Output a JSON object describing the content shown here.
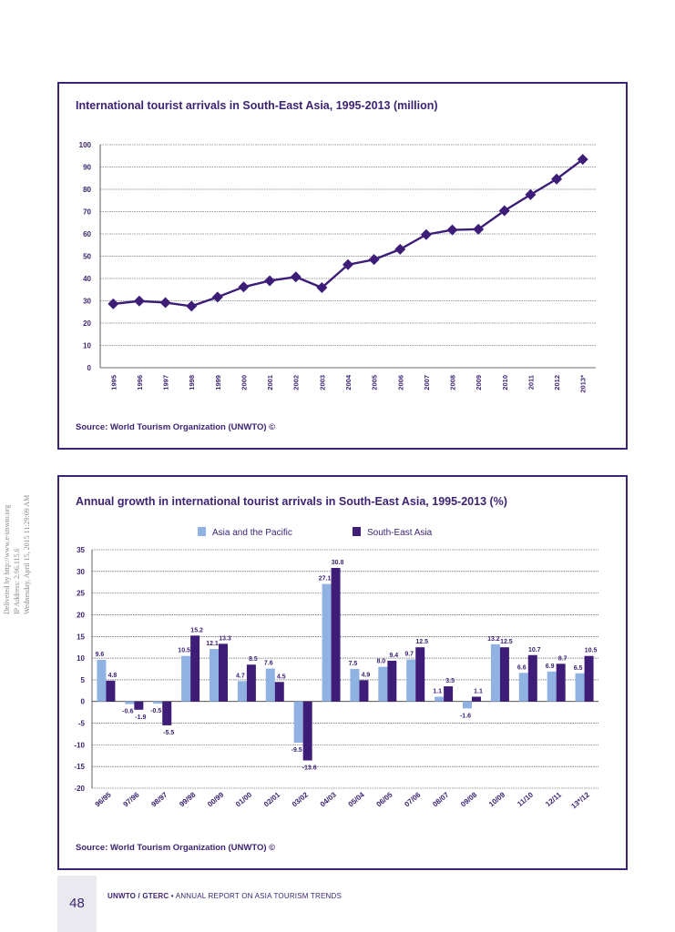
{
  "watermark": {
    "line1": "Delivered by http://www.e-unwto.org",
    "line2": "IP Address: 2.96.115.6",
    "line3": "Wednesday, April 15, 2015 11:29:09 AM"
  },
  "footer": {
    "page_number": "48",
    "org": "UNWTO / GTERC",
    "bullet": "•",
    "report": "ANNUAL REPORT ON ASIA TOURISM TRENDS"
  },
  "colors": {
    "series_dark": "#3d1d78",
    "series_light": "#8fb2e3",
    "frame": "#3d2373"
  },
  "chart_data": [
    {
      "type": "line",
      "title": "International tourist arrivals in South-East Asia, 1995-2013 (million)",
      "source": "Source: World Tourism Organization (UNWTO) ©",
      "x": [
        "1995",
        "1996",
        "1997",
        "1998",
        "1999",
        "2000",
        "2001",
        "2002",
        "2003",
        "2004",
        "2005",
        "2006",
        "2007",
        "2008",
        "2009",
        "2010",
        "2011",
        "2012",
        "2013*"
      ],
      "series": [
        {
          "values": [
            28.6,
            29.9,
            29.2,
            27.6,
            31.7,
            36.2,
            39.0,
            40.7,
            35.9,
            46.2,
            48.5,
            53.1,
            59.7,
            61.8,
            62.1,
            70.4,
            77.6,
            84.6,
            93.4
          ]
        }
      ],
      "ylim": [
        0,
        100
      ],
      "yticks": [
        0,
        10,
        20,
        30,
        40,
        50,
        60,
        70,
        80,
        90,
        100
      ],
      "grid": true
    },
    {
      "type": "bar",
      "title": "Annual growth in international tourist arrivals in South-East Asia, 1995-2013 (%)",
      "source": "Source: World Tourism Organization (UNWTO) ©",
      "categories": [
        "96/95",
        "97/96",
        "98/97",
        "99/98",
        "00/99",
        "01/00",
        "02/01",
        "03/02",
        "04/03",
        "05/04",
        "06/05",
        "07/06",
        "08/07",
        "09/08",
        "10/09",
        "11/10",
        "12/11",
        "13*/12"
      ],
      "series": [
        {
          "name": "Asia and the Pacific",
          "values": [
            9.6,
            -0.6,
            -0.5,
            10.5,
            12.1,
            4.7,
            7.6,
            -9.5,
            27.1,
            7.5,
            8.0,
            9.7,
            1.1,
            -1.6,
            13.2,
            6.6,
            6.9,
            6.5
          ]
        },
        {
          "name": "South-East Asia",
          "values": [
            4.8,
            -1.9,
            -5.5,
            15.2,
            13.3,
            8.5,
            4.5,
            -13.6,
            30.8,
            4.9,
            9.4,
            12.5,
            3.5,
            1.1,
            12.5,
            10.7,
            8.7,
            10.5
          ]
        }
      ],
      "labels": [
        [
          "9.6",
          "-0.6",
          "-0.5",
          "10.5",
          "12.1",
          "4.7",
          "7.6",
          "-9.5",
          "27.1",
          "7.5",
          "8.0",
          "9.7",
          "1.1",
          "-1.6",
          "13.2",
          "6.6",
          "6.9",
          "6.5"
        ],
        [
          "4.8",
          "-1.9",
          "-5.5",
          "15.2",
          "13.3",
          "8.5",
          "4.5",
          "-13.6",
          "30.8",
          "4.9",
          "9.4",
          "12.5",
          "3.5",
          "1.1",
          "12.5",
          "10.7",
          "8.7",
          "10.5"
        ]
      ],
      "ylim": [
        -20,
        35
      ],
      "yticks": [
        -20,
        -15,
        -10,
        -5,
        0,
        5,
        10,
        15,
        20,
        25,
        30,
        35
      ],
      "grid": true,
      "legend_position": "top"
    }
  ]
}
